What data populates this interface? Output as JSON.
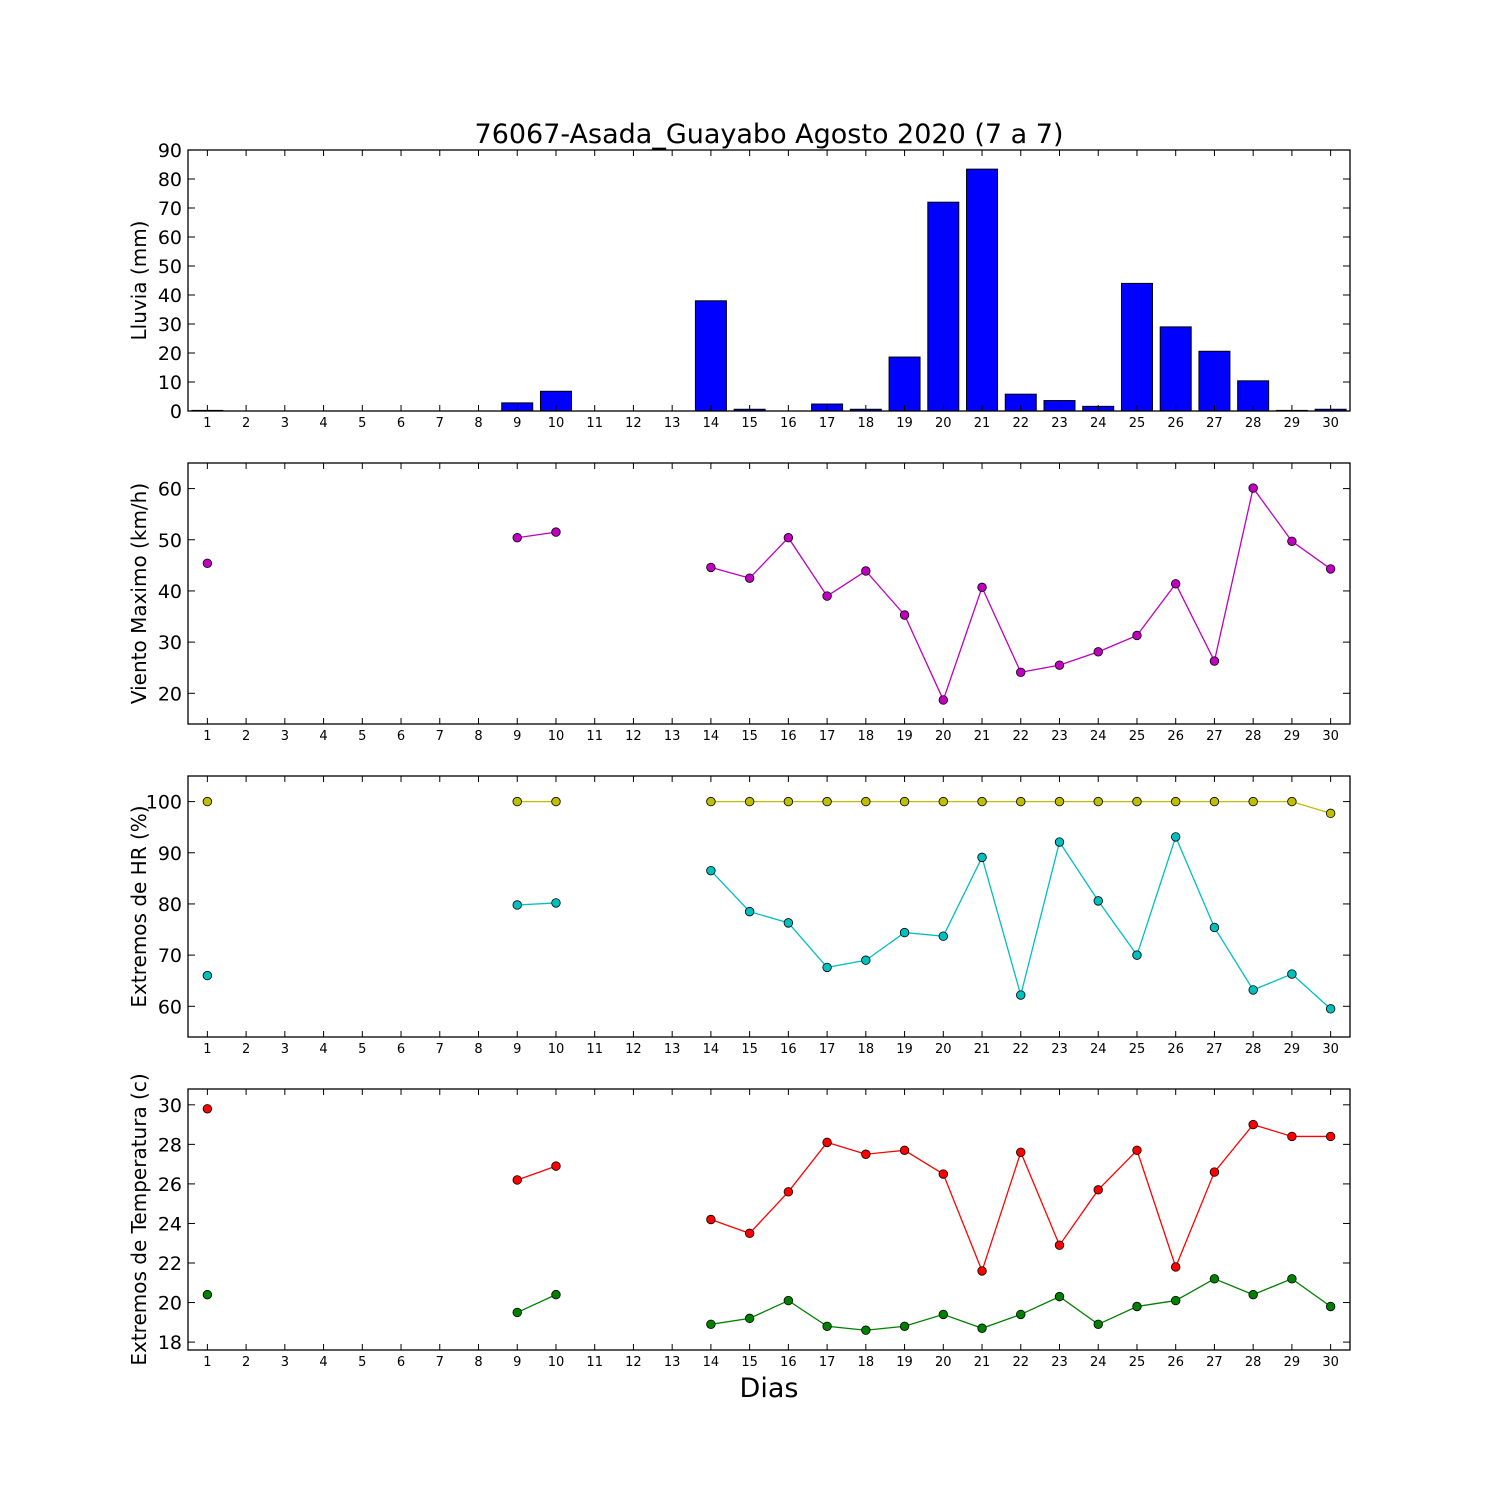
{
  "chart_data": {
    "title": "76067-Asada_Guayabo Agosto 2020  (7 a 7)",
    "xlabel": "Dias",
    "x": [
      1,
      2,
      3,
      4,
      5,
      6,
      7,
      8,
      9,
      10,
      11,
      12,
      13,
      14,
      15,
      16,
      17,
      18,
      19,
      20,
      21,
      22,
      23,
      24,
      25,
      26,
      27,
      28,
      29,
      30
    ],
    "panels": [
      {
        "type": "bar",
        "ylabel": "Lluvia (mm)",
        "ylim": [
          0,
          90
        ],
        "yticks": [
          0,
          10,
          20,
          30,
          40,
          50,
          60,
          70,
          80,
          90
        ],
        "series": [
          {
            "color": "#0000ff",
            "values": [
              0.2,
              0,
              0,
              0,
              0,
              0,
              0,
              0,
              2.8,
              6.8,
              0,
              0,
              0,
              38,
              0.6,
              0,
              2.4,
              0.6,
              18.6,
              72,
              83.4,
              5.8,
              3.6,
              1.6,
              44,
              29,
              20.6,
              10.4,
              0.2,
              0.6
            ]
          }
        ]
      },
      {
        "type": "line",
        "ylabel": "Viento Maximo (km/h)",
        "ylim": [
          14,
          65
        ],
        "yticks": [
          20,
          30,
          40,
          50,
          60
        ],
        "series": [
          {
            "color": "#bf00bf",
            "values": [
              45.4,
              null,
              null,
              null,
              null,
              null,
              null,
              null,
              50.4,
              51.5,
              null,
              null,
              null,
              44.6,
              42.5,
              50.4,
              39,
              43.9,
              35.3,
              18.7,
              40.7,
              24.1,
              25.5,
              28.1,
              31.3,
              41.4,
              26.3,
              60.1,
              49.7,
              44.3
            ]
          }
        ]
      },
      {
        "type": "line",
        "ylabel": "Extremos de HR (%)",
        "ylim": [
          54,
          105
        ],
        "yticks": [
          60,
          70,
          80,
          90,
          100
        ],
        "series": [
          {
            "color": "#bfbf00",
            "values": [
              100,
              null,
              null,
              null,
              null,
              null,
              null,
              null,
              100,
              100,
              null,
              null,
              null,
              100,
              100,
              100,
              100,
              100,
              100,
              100,
              100,
              100,
              100,
              100,
              100,
              100,
              100,
              100,
              100,
              97.7
            ]
          },
          {
            "color": "#00bfbf",
            "values": [
              66,
              null,
              null,
              null,
              null,
              null,
              null,
              null,
              79.8,
              80.2,
              null,
              null,
              null,
              86.5,
              78.5,
              76.3,
              67.6,
              69,
              74.4,
              73.7,
              89.1,
              62.2,
              92.1,
              80.6,
              70,
              93.1,
              75.4,
              63.2,
              66.3,
              59.5
            ]
          }
        ]
      },
      {
        "type": "line",
        "ylabel": "Extremos de Temperatura (c)",
        "ylim": [
          17.6,
          30.8
        ],
        "yticks": [
          18,
          20,
          22,
          24,
          26,
          28,
          30
        ],
        "series": [
          {
            "color": "#ff0000",
            "values": [
              29.8,
              null,
              null,
              null,
              null,
              null,
              null,
              null,
              26.2,
              26.9,
              null,
              null,
              null,
              24.2,
              23.5,
              25.6,
              28.1,
              27.5,
              27.7,
              26.5,
              21.6,
              27.6,
              22.9,
              25.7,
              27.7,
              21.8,
              26.6,
              29,
              28.4,
              28.4
            ]
          },
          {
            "color": "#008000",
            "values": [
              20.4,
              null,
              null,
              null,
              null,
              null,
              null,
              null,
              19.5,
              20.4,
              null,
              null,
              null,
              18.9,
              19.2,
              20.1,
              18.8,
              18.6,
              18.8,
              19.4,
              18.7,
              19.4,
              20.3,
              18.9,
              19.8,
              20.1,
              21.2,
              20.4,
              21.2,
              19.8
            ]
          }
        ]
      }
    ]
  }
}
